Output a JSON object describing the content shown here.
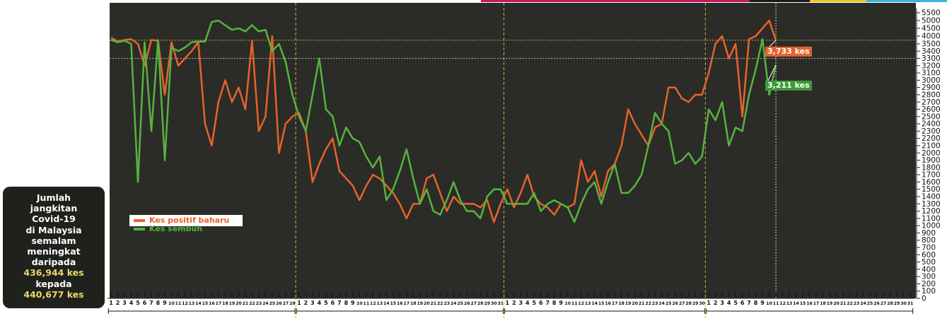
{
  "info_box": {
    "line1": "Jumlah",
    "line2": "jangkitan",
    "line3": "Covid-19",
    "line4": "di Malaysia",
    "line5": "semalam",
    "line6": "meningkat",
    "line7": "daripada",
    "value_from": "436,944 kes",
    "line9": "kepada",
    "value_to": "440,677 kes"
  },
  "callouts": {
    "positive": "3,733 kes",
    "recovered": "3,211 kes"
  },
  "colors": {
    "positive": "#e8622a",
    "recovered": "#57b33f",
    "background": "#2b2c28",
    "number_highlight": "#e9d76a"
  },
  "chart_data": {
    "type": "line",
    "legend_position": "left",
    "ylim": [
      0,
      5500
    ],
    "yticks": [
      0,
      100,
      200,
      300,
      400,
      500,
      600,
      700,
      800,
      900,
      1000,
      1100,
      1200,
      1300,
      1400,
      1500,
      1600,
      1700,
      1800,
      1900,
      2000,
      2100,
      2200,
      2300,
      2400,
      2500,
      2600,
      2700,
      2800,
      2900,
      3000,
      3100,
      3200,
      3300,
      3400,
      3500,
      4000,
      4500,
      5000,
      5500
    ],
    "months": [
      {
        "days": 28
      },
      {
        "days": 31
      },
      {
        "days": 30
      },
      {
        "days": 31
      }
    ],
    "x_day_labels": [
      "1",
      "2",
      "3",
      "4",
      "5",
      "6",
      "7",
      "8",
      "9",
      "10",
      "11",
      "12",
      "13",
      "14",
      "15",
      "16",
      "17",
      "18",
      "19",
      "20",
      "21",
      "22",
      "23",
      "24",
      "25",
      "26",
      "27",
      "28",
      "1",
      "2",
      "3",
      "4",
      "5",
      "6",
      "7",
      "8",
      "9",
      "10",
      "11",
      "12",
      "13",
      "14",
      "15",
      "16",
      "17",
      "18",
      "19",
      "20",
      "21",
      "22",
      "23",
      "24",
      "25",
      "26",
      "27",
      "28",
      "29",
      "30",
      "31",
      "1",
      "2",
      "3",
      "4",
      "5",
      "6",
      "7",
      "8",
      "9",
      "10",
      "11",
      "12",
      "13",
      "14",
      "15",
      "16",
      "17",
      "18",
      "19",
      "20",
      "21",
      "22",
      "23",
      "24",
      "25",
      "26",
      "27",
      "28",
      "29",
      "30",
      "1",
      "2",
      "3",
      "4",
      "5",
      "6",
      "7",
      "8",
      "9",
      "10",
      "11",
      "12",
      "13",
      "14",
      "15",
      "16",
      "17",
      "18",
      "19",
      "20",
      "21",
      "22",
      "23",
      "24",
      "25",
      "26",
      "27",
      "28",
      "29",
      "30",
      "31"
    ],
    "grid": false,
    "series": [
      {
        "name": "Kes positif baharu",
        "values": [
          3900,
          3650,
          3750,
          3800,
          3500,
          3200,
          3750,
          3700,
          2800,
          3600,
          3200,
          3300,
          3400,
          3600,
          2400,
          2100,
          2700,
          3000,
          2700,
          2900,
          2600,
          3700,
          2300,
          2500,
          4000,
          2000,
          2400,
          2500,
          2550,
          2300,
          1600,
          1850,
          2050,
          2200,
          1750,
          1650,
          1550,
          1350,
          1550,
          1700,
          1650,
          1550,
          1450,
          1300,
          1100,
          1300,
          1300,
          1650,
          1700,
          1450,
          1200,
          1400,
          1300,
          1300,
          1300,
          1250,
          1350,
          1050,
          1300,
          1500,
          1250,
          1450,
          1700,
          1400,
          1300,
          1250,
          1150,
          1300,
          1250,
          1300,
          1900,
          1600,
          1750,
          1400,
          1750,
          1850,
          2100,
          2600,
          2400,
          2250,
          2100,
          2350,
          2400,
          2900,
          2900,
          2750,
          2700,
          2800,
          2800,
          3100,
          3500,
          4000,
          3300,
          3500,
          2500,
          3800,
          4000,
          4500,
          5000,
          3733
        ],
        "labels_visible": "3,733 kes"
      },
      {
        "name": "Kes sembuh",
        "values": [
          3750,
          3600,
          3700,
          3500,
          1600,
          3600,
          2300,
          3750,
          1900,
          3450,
          3400,
          3450,
          3600,
          3650,
          3650,
          4900,
          5000,
          4700,
          4400,
          4500,
          4300,
          4700,
          4300,
          4400,
          3400,
          3500,
          3250,
          2800,
          2500,
          2300,
          2800,
          3300,
          2600,
          2500,
          2100,
          2350,
          2200,
          2150,
          1950,
          1800,
          1950,
          1350,
          1500,
          1750,
          2050,
          1650,
          1300,
          1500,
          1200,
          1150,
          1350,
          1600,
          1350,
          1200,
          1200,
          1100,
          1400,
          1500,
          1500,
          1300,
          1300,
          1300,
          1300,
          1450,
          1200,
          1300,
          1350,
          1300,
          1250,
          1050,
          1300,
          1500,
          1600,
          1300,
          1600,
          1850,
          1450,
          1450,
          1550,
          1700,
          2100,
          2550,
          2400,
          2300,
          1850,
          1900,
          2000,
          1850,
          1950,
          2600,
          2450,
          2700,
          2100,
          2350,
          2300,
          2800,
          3150,
          3800,
          2800,
          3211
        ],
        "labels_visible": "3,211 kes"
      }
    ]
  }
}
